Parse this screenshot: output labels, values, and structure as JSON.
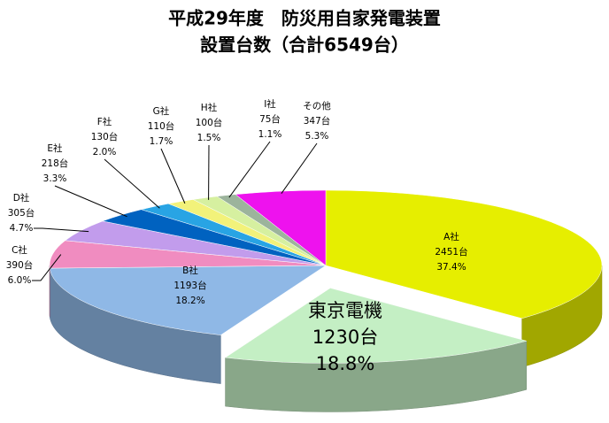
{
  "chart_data": {
    "type": "pie",
    "title": [
      "平成29年度　防災用自家発電装置",
      "設置台数（合計6549台）"
    ],
    "categories": [
      "A社",
      "東京電機",
      "B社",
      "C社",
      "D社",
      "E社",
      "F社",
      "G社",
      "H社",
      "I社",
      "その他"
    ],
    "values": [
      2451,
      1230,
      1193,
      390,
      305,
      218,
      130,
      110,
      100,
      75,
      347
    ],
    "value_labels": [
      "2451台",
      "1230台",
      "1193台",
      "390台",
      "305台",
      "218台",
      "130台",
      "110台",
      "100台",
      "75台",
      "347台"
    ],
    "percent_labels": [
      "37.4%",
      "18.8%",
      "18.2%",
      "6.0%",
      "4.7%",
      "3.3%",
      "2.0%",
      "1.7%",
      "1.5%",
      "1.1%",
      "5.3%"
    ],
    "colors": [
      "#e6ee00",
      "#c4efc4",
      "#8fb8e6",
      "#f08cc0",
      "#c29cec",
      "#0062c0",
      "#28a4e4",
      "#f2f27a",
      "#d6f0a0",
      "#9cb49c",
      "#ee12ee"
    ],
    "exploded": [
      false,
      true,
      false,
      false,
      false,
      false,
      false,
      false,
      false,
      false,
      false
    ]
  }
}
